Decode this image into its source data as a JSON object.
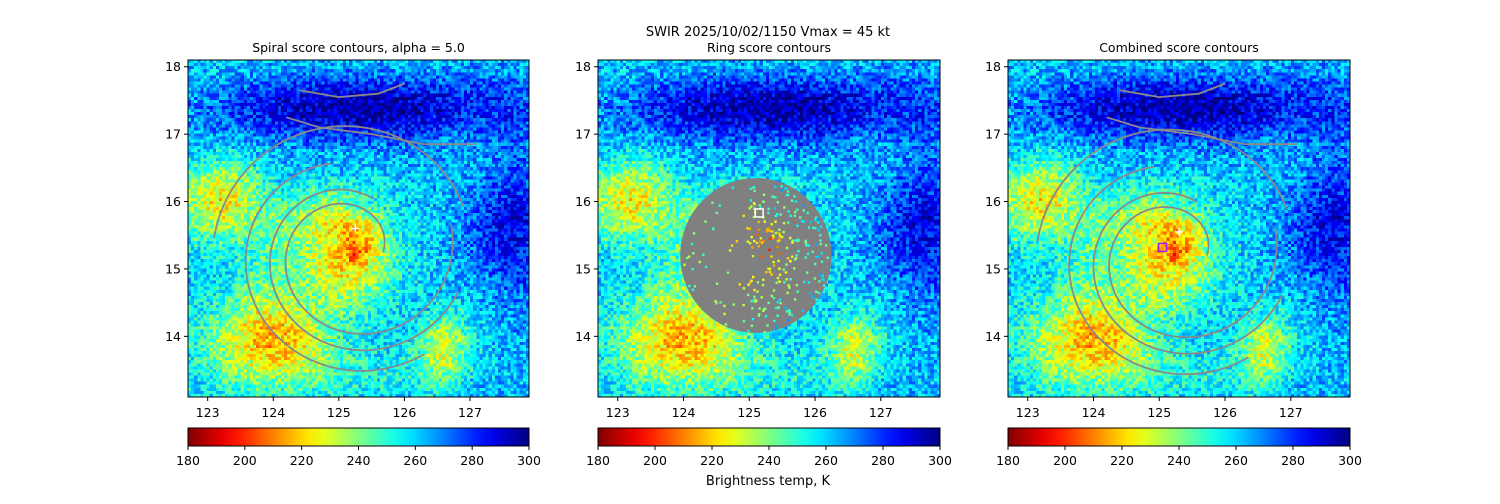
{
  "figure": {
    "suptitle_line1": "SWIR  2025/10/02/1150    Vmax = 45 kt",
    "colorbar_label": "Brightness temp, K",
    "colorbar_ticks": [
      "180",
      "200",
      "220",
      "240",
      "260",
      "280",
      "300"
    ]
  },
  "colors": {
    "contour": "#8a8a8a",
    "ring_mask": "#808080",
    "center_marker": "#ffffff",
    "combined_marker": "#a020f0",
    "colormap": "jet_reversed"
  },
  "chart_data": [
    {
      "type": "heatmap",
      "title": "Spiral score contours, alpha =  5.0",
      "xlabel": "",
      "ylabel": "",
      "xlim": [
        122.7,
        127.9
      ],
      "ylim": [
        13.1,
        18.1
      ],
      "x_ticks": [
        "123",
        "124",
        "125",
        "126",
        "127"
      ],
      "y_ticks": [
        "14",
        "15",
        "16",
        "17",
        "18"
      ],
      "colorbar": {
        "min": 180,
        "max": 300,
        "cmap": "jet_reversed"
      },
      "center_plus": [
        125.25,
        15.6
      ],
      "overlay": "spiral_contours"
    },
    {
      "type": "heatmap",
      "title": "Ring score contours",
      "xlabel": "",
      "ylabel": "",
      "xlim": [
        122.7,
        127.9
      ],
      "ylim": [
        13.1,
        18.1
      ],
      "x_ticks": [
        "123",
        "124",
        "125",
        "126",
        "127"
      ],
      "y_ticks": [
        "14",
        "15",
        "16",
        "17",
        "18"
      ],
      "colorbar": {
        "min": 180,
        "max": 300,
        "cmap": "jet_reversed"
      },
      "ring_region": {
        "center": [
          125.1,
          15.2
        ],
        "radius_deg": 1.15
      },
      "square_marker": [
        125.15,
        15.83
      ],
      "overlay": "ring_mask"
    },
    {
      "type": "heatmap",
      "title": "Combined score contours",
      "xlabel": "",
      "ylabel": "",
      "xlim": [
        122.7,
        127.9
      ],
      "ylim": [
        13.1,
        18.1
      ],
      "x_ticks": [
        "123",
        "124",
        "125",
        "126",
        "127"
      ],
      "y_ticks": [
        "14",
        "15",
        "16",
        "17",
        "18"
      ],
      "colorbar": {
        "min": 180,
        "max": 300,
        "cmap": "jet_reversed"
      },
      "center_plus": [
        125.3,
        15.55
      ],
      "square_marker": [
        125.05,
        15.32
      ],
      "overlay": "combined_contours"
    }
  ]
}
